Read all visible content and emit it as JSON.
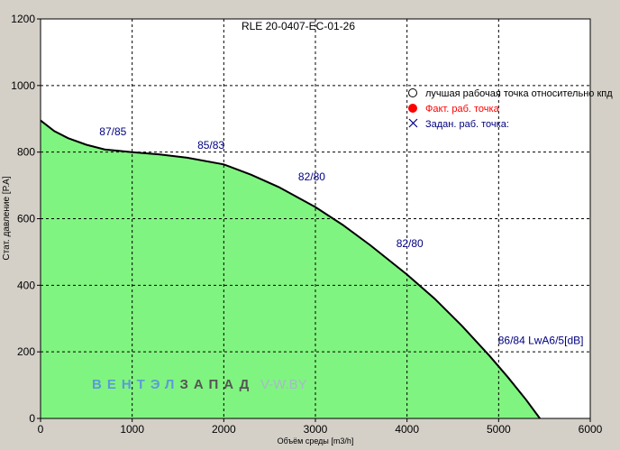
{
  "chart_data": {
    "type": "area",
    "title": "RLE 20-0407-EC-01-26",
    "xlabel": "Объём среды [m3/h]",
    "ylabel": "Стат. давление [Р.А]",
    "xlim": [
      0,
      6000
    ],
    "ylim": [
      0,
      1200
    ],
    "x_ticks": [
      "0",
      "1000",
      "2000",
      "3000",
      "4000",
      "5000",
      "6000"
    ],
    "y_ticks": [
      "0",
      "200",
      "400",
      "600",
      "800",
      "1000",
      "1200"
    ],
    "grid": true,
    "series": [
      {
        "values": [
          {
            "x": 0,
            "y": 895
          },
          {
            "x": 150,
            "y": 863
          },
          {
            "x": 300,
            "y": 842
          },
          {
            "x": 500,
            "y": 822
          },
          {
            "x": 700,
            "y": 808
          },
          {
            "x": 1000,
            "y": 800
          },
          {
            "x": 1300,
            "y": 793
          },
          {
            "x": 1600,
            "y": 783
          },
          {
            "x": 2000,
            "y": 763
          },
          {
            "x": 2300,
            "y": 732
          },
          {
            "x": 2600,
            "y": 695
          },
          {
            "x": 3000,
            "y": 635
          },
          {
            "x": 3300,
            "y": 581
          },
          {
            "x": 3600,
            "y": 520
          },
          {
            "x": 4000,
            "y": 432
          },
          {
            "x": 4300,
            "y": 360
          },
          {
            "x": 4600,
            "y": 278
          },
          {
            "x": 4900,
            "y": 188
          },
          {
            "x": 5100,
            "y": 124
          },
          {
            "x": 5300,
            "y": 56
          },
          {
            "x": 5450,
            "y": 0
          }
        ]
      }
    ],
    "annotations": [
      {
        "text": "87/85",
        "x": 790,
        "y": 850
      },
      {
        "text": "85/83",
        "x": 1860,
        "y": 810
      },
      {
        "text": "82/80",
        "x": 2960,
        "y": 715
      },
      {
        "text": "82/80",
        "x": 4030,
        "y": 515
      },
      {
        "text": "86/84 LwA6/5[dB]",
        "x": 5460,
        "y": 223
      }
    ],
    "legend": {
      "placement": "top-right",
      "items": [
        {
          "label": "лучшая рабочая точка относительно кпд",
          "marker": "circle-open",
          "color": "#000000"
        },
        {
          "label": "Факт.  раб. точка",
          "marker": "circle-filled",
          "color": "#ff0000"
        },
        {
          "label": "Задан. раб. точка:",
          "marker": "cross",
          "color": "#000080"
        }
      ]
    },
    "watermark": {
      "part1": "ВЕНТЭЛ",
      "part2": "ЗАПАД",
      "part3": "V-W.BY"
    },
    "colors": {
      "background": "#d4d0c8",
      "plot_background": "#ffffff",
      "fill": "#80f480",
      "curve": "#000000",
      "annotation": "#000080",
      "watermark1": "#5c9bd8",
      "watermark2": "#555555",
      "watermark3": "#a7b9c8"
    }
  }
}
